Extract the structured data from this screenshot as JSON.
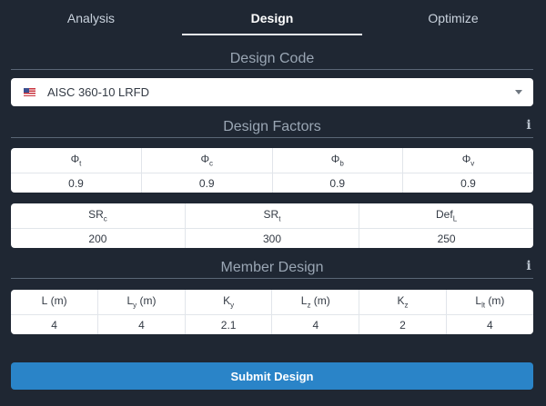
{
  "tabs": [
    {
      "label": "Analysis"
    },
    {
      "label": "Design"
    },
    {
      "label": "Optimize"
    }
  ],
  "design_code": {
    "title": "Design Code",
    "selected": "AISC 360-10 LRFD",
    "flag_icon": "us-flag-icon"
  },
  "design_factors": {
    "title": "Design Factors",
    "info_icon": "info-icon",
    "phi_table": {
      "headers": [
        {
          "base": "Φ",
          "sub": "t"
        },
        {
          "base": "Φ",
          "sub": "c"
        },
        {
          "base": "Φ",
          "sub": "b"
        },
        {
          "base": "Φ",
          "sub": "v"
        }
      ],
      "values": [
        "0.9",
        "0.9",
        "0.9",
        "0.9"
      ]
    },
    "limits_table": {
      "headers": [
        {
          "base": "SR",
          "sub": "c"
        },
        {
          "base": "SR",
          "sub": "t"
        },
        {
          "base": "Def",
          "sub": "L"
        }
      ],
      "values": [
        "200",
        "300",
        "250"
      ]
    }
  },
  "member_design": {
    "title": "Member Design",
    "info_icon": "info-icon",
    "table": {
      "headers": [
        {
          "base": "L",
          "sub": "",
          "unit": " (m)"
        },
        {
          "base": "L",
          "sub": "y",
          "unit": " (m)"
        },
        {
          "base": "K",
          "sub": "y",
          "unit": ""
        },
        {
          "base": "L",
          "sub": "z",
          "unit": " (m)"
        },
        {
          "base": "K",
          "sub": "z",
          "unit": ""
        },
        {
          "base": "L",
          "sub": "lt",
          "unit": " (m)"
        }
      ],
      "values": [
        "4",
        "4",
        "2.1",
        "4",
        "2",
        "4"
      ]
    }
  },
  "submit_label": "Submit Design",
  "colors": {
    "background": "#1f2733",
    "accent": "#2a84c8",
    "card": "#ffffff"
  }
}
